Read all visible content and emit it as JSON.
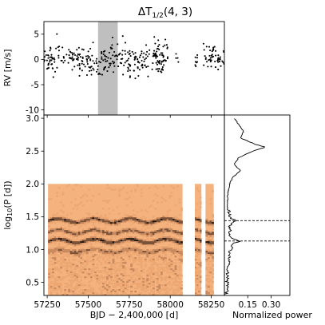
{
  "figure": {
    "title": "ΔT",
    "title_sub": "1/2",
    "title_args": "(4, 3)"
  },
  "chart_data": [
    {
      "panel": "rv_timeseries",
      "type": "scatter",
      "ylabel": "RV [m/s]",
      "xlim": [
        57230,
        58330
      ],
      "ylim": [
        -11,
        7.5
      ],
      "yticks": [
        5,
        0,
        -5,
        -10
      ],
      "grid": false,
      "highlight_band": {
        "x": [
          57560,
          57680
        ],
        "color": "#bfbfbf"
      },
      "observing_segments": [
        {
          "x": [
            57230,
            58050
          ],
          "spread": 2.2
        },
        {
          "x": [
            58150,
            58165
          ],
          "spread": 1.2
        },
        {
          "x": [
            58200,
            58330
          ],
          "spread": 1.6
        }
      ],
      "points_shown": 400,
      "marker_color": "#000000"
    },
    {
      "panel": "period_timeseries_map",
      "type": "heatmap",
      "xlabel": "BJD − 2,400,000 [d]",
      "ylabel_prefix": "log",
      "ylabel_sub": "10",
      "ylabel_suffix": "(P [d])",
      "xlim": [
        57230,
        58330
      ],
      "ylim": [
        0.3,
        3.05
      ],
      "xticks": [
        57250,
        57500,
        57750,
        58000,
        58250
      ],
      "xtick_labels": [
        "57250",
        "57500",
        "57750",
        "58000",
        "58250"
      ],
      "yticks": [
        0.5,
        1.0,
        1.5,
        2.0,
        2.5,
        3.0
      ],
      "ytick_labels": [
        "0.5",
        "1.0",
        "1.5",
        "2.0",
        "2.5",
        "3.0"
      ],
      "data_blocks": [
        {
          "x": [
            57255,
            58075
          ],
          "y": [
            0.3,
            2.0
          ]
        },
        {
          "x": [
            58150,
            58190
          ],
          "y": [
            0.3,
            2.0
          ]
        },
        {
          "x": [
            58215,
            58265
          ],
          "y": [
            0.3,
            2.0
          ]
        }
      ],
      "colormap": [
        "#f4b27e",
        "#eda772",
        "#c98a5f",
        "#7a5238",
        "#1e140f"
      ],
      "ridges": [
        {
          "logP": 1.44,
          "strength": 0.55
        },
        {
          "logP": 1.27,
          "strength": 0.45
        },
        {
          "logP": 1.13,
          "strength": 0.6
        },
        {
          "logP": 0.98,
          "strength": 0.3
        }
      ]
    },
    {
      "panel": "normalized_periodogram",
      "type": "line",
      "xlabel": "Normalized power",
      "xlim": [
        0,
        0.42
      ],
      "xticks": [
        0.15,
        0.3
      ],
      "xtick_labels": [
        "0.15",
        "0.30"
      ],
      "line_color": "#000000",
      "peaks_marked_logP": [
        1.44,
        1.13
      ],
      "series": {
        "logP": [
          0.35,
          0.5,
          0.7,
          0.9,
          1.0,
          1.05,
          1.1,
          1.13,
          1.16,
          1.2,
          1.25,
          1.3,
          1.35,
          1.4,
          1.44,
          1.48,
          1.55,
          1.7,
          1.85,
          2.0,
          2.1,
          2.2,
          2.3,
          2.4,
          2.5,
          2.56,
          2.6,
          2.7,
          2.8,
          2.9,
          3.0
        ],
        "power": [
          0.005,
          0.008,
          0.01,
          0.02,
          0.03,
          0.04,
          0.05,
          0.09,
          0.04,
          0.03,
          0.02,
          0.03,
          0.025,
          0.04,
          0.07,
          0.03,
          0.02,
          0.015,
          0.02,
          0.03,
          0.05,
          0.1,
          0.06,
          0.09,
          0.18,
          0.26,
          0.2,
          0.1,
          0.12,
          0.09,
          0.06
        ]
      }
    }
  ]
}
